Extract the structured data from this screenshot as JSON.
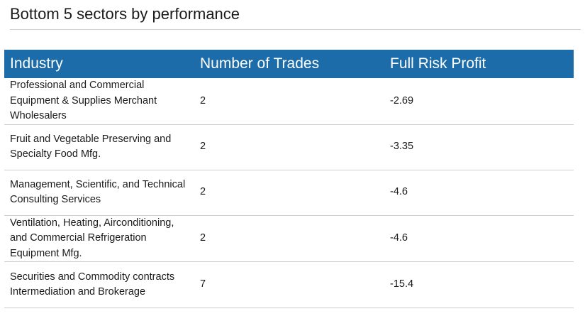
{
  "title": "Bottom 5 sectors by performance",
  "table": {
    "headers": [
      "Industry",
      "Number of Trades",
      "Full Risk Profit"
    ],
    "rows": [
      {
        "industry": "Professional and Commercial Equipment & Supplies Merchant Wholesalers",
        "trades": "2",
        "profit": "-2.69"
      },
      {
        "industry": "Fruit and Vegetable Preserving and Specialty Food Mfg.",
        "trades": "2",
        "profit": "-3.35"
      },
      {
        "industry": "Management, Scientific, and Technical Consulting Services",
        "trades": "2",
        "profit": "-4.6"
      },
      {
        "industry": "Ventilation, Heating, Airconditioning, and Commercial Refrigeration Equipment Mfg.",
        "trades": "2",
        "profit": "-4.6"
      },
      {
        "industry": "Securities and Commodity contracts Intermediation and Brokerage",
        "trades": "7",
        "profit": "-15.4"
      }
    ]
  },
  "colors": {
    "header_bg": "#1b6ca8",
    "header_text": "#ffffff",
    "rule": "#cfcfcf"
  }
}
